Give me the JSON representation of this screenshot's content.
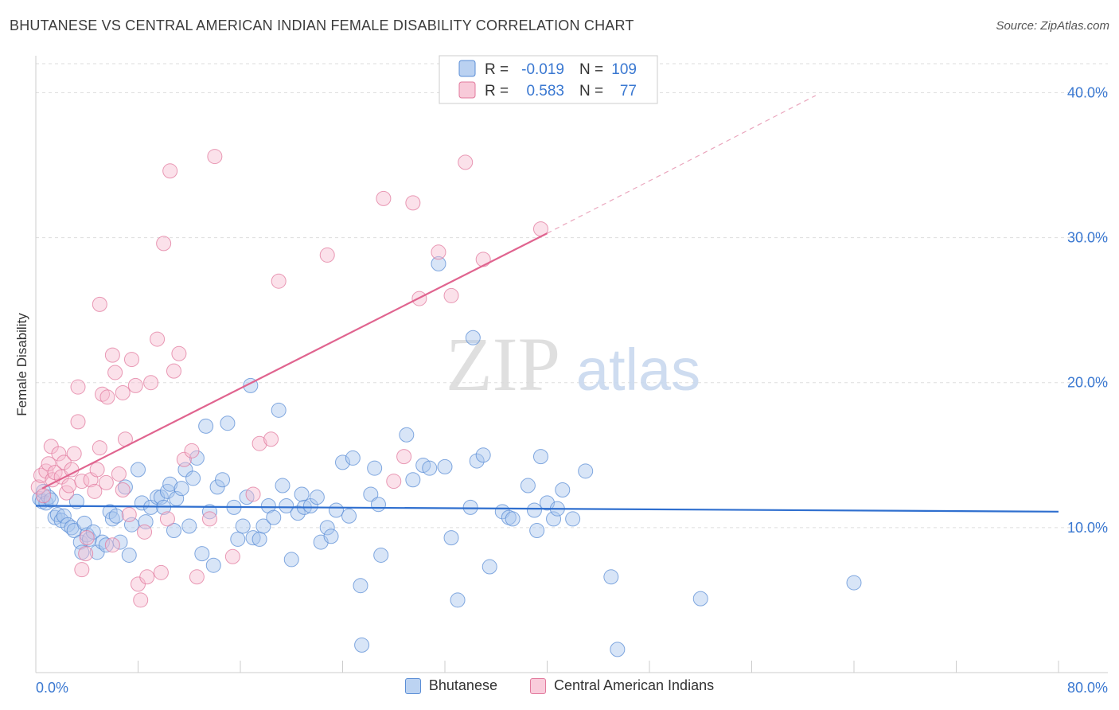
{
  "title": "BHUTANESE VS CENTRAL AMERICAN INDIAN FEMALE DISABILITY CORRELATION CHART",
  "source": "Source: ZipAtlas.com",
  "watermark": {
    "zip": "ZIP",
    "atlas": "atlas"
  },
  "chart_data": {
    "type": "scatter",
    "ylabel": "Female Disability",
    "xlabel": "",
    "xlim": [
      0,
      80
    ],
    "ylim": [
      0,
      42
    ],
    "x_tick_labels": [
      "0.0%",
      "80.0%"
    ],
    "y_ticks": [
      10,
      20,
      30,
      40
    ],
    "y_tick_labels": [
      "10.0%",
      "20.0%",
      "30.0%",
      "40.0%"
    ],
    "grid": true,
    "legend_position": "top-center",
    "series": [
      {
        "name": "Bhutanese",
        "color": "#5b8ed6",
        "fill": "#a9c6ee",
        "stats": {
          "r_label": "R =",
          "r_value": "-0.019",
          "n_label": "N =",
          "n_value": "109"
        },
        "trend": {
          "x": [
            0,
            80
          ],
          "y": [
            11.5,
            11.1
          ]
        },
        "points": [
          [
            0.3,
            12.0
          ],
          [
            0.5,
            11.8
          ],
          [
            0.6,
            12.5
          ],
          [
            0.8,
            11.7
          ],
          [
            1.0,
            12.1
          ],
          [
            1.2,
            11.9
          ],
          [
            1.5,
            10.7
          ],
          [
            1.7,
            10.9
          ],
          [
            2.0,
            10.5
          ],
          [
            2.2,
            10.8
          ],
          [
            2.5,
            10.2
          ],
          [
            2.8,
            10.0
          ],
          [
            3.0,
            9.8
          ],
          [
            3.2,
            11.8
          ],
          [
            3.5,
            9.0
          ],
          [
            3.6,
            8.3
          ],
          [
            3.8,
            10.3
          ],
          [
            4.0,
            9.5
          ],
          [
            4.2,
            9.2
          ],
          [
            4.5,
            9.7
          ],
          [
            4.8,
            8.3
          ],
          [
            5.2,
            9.0
          ],
          [
            5.5,
            8.8
          ],
          [
            5.8,
            11.1
          ],
          [
            6.0,
            10.6
          ],
          [
            6.3,
            10.8
          ],
          [
            6.6,
            9.0
          ],
          [
            7.0,
            12.8
          ],
          [
            7.3,
            8.1
          ],
          [
            7.5,
            10.2
          ],
          [
            8.0,
            14.0
          ],
          [
            8.3,
            11.7
          ],
          [
            8.6,
            10.4
          ],
          [
            9.0,
            11.4
          ],
          [
            9.5,
            12.1
          ],
          [
            9.8,
            12.1
          ],
          [
            10.0,
            11.4
          ],
          [
            10.3,
            12.5
          ],
          [
            10.5,
            13.0
          ],
          [
            10.8,
            9.8
          ],
          [
            11.0,
            12.0
          ],
          [
            11.4,
            12.7
          ],
          [
            11.7,
            14.0
          ],
          [
            12.0,
            10.1
          ],
          [
            12.3,
            13.4
          ],
          [
            12.6,
            14.8
          ],
          [
            13.0,
            8.2
          ],
          [
            13.3,
            17.0
          ],
          [
            13.6,
            11.1
          ],
          [
            13.9,
            7.4
          ],
          [
            14.2,
            12.8
          ],
          [
            14.6,
            13.3
          ],
          [
            15.0,
            17.2
          ],
          [
            15.5,
            11.4
          ],
          [
            15.8,
            9.2
          ],
          [
            16.2,
            10.1
          ],
          [
            16.5,
            12.1
          ],
          [
            16.8,
            19.8
          ],
          [
            17.0,
            9.3
          ],
          [
            17.5,
            9.2
          ],
          [
            17.8,
            10.1
          ],
          [
            18.2,
            11.5
          ],
          [
            18.6,
            10.7
          ],
          [
            19.0,
            18.1
          ],
          [
            19.3,
            12.9
          ],
          [
            19.6,
            11.5
          ],
          [
            20.0,
            7.8
          ],
          [
            20.5,
            11.0
          ],
          [
            20.8,
            12.3
          ],
          [
            21.0,
            11.4
          ],
          [
            21.5,
            11.5
          ],
          [
            22.0,
            12.1
          ],
          [
            22.3,
            9.0
          ],
          [
            22.8,
            10.0
          ],
          [
            23.1,
            9.4
          ],
          [
            23.5,
            11.2
          ],
          [
            24.0,
            14.5
          ],
          [
            24.5,
            10.8
          ],
          [
            24.8,
            14.8
          ],
          [
            25.4,
            6.0
          ],
          [
            25.5,
            1.9
          ],
          [
            26.2,
            12.3
          ],
          [
            26.5,
            14.1
          ],
          [
            26.8,
            11.6
          ],
          [
            27.0,
            8.1
          ],
          [
            29.0,
            16.4
          ],
          [
            29.5,
            13.3
          ],
          [
            30.3,
            14.3
          ],
          [
            30.8,
            14.1
          ],
          [
            31.5,
            28.2
          ],
          [
            32.0,
            14.2
          ],
          [
            32.5,
            9.3
          ],
          [
            33.0,
            5.0
          ],
          [
            34.0,
            11.4
          ],
          [
            34.2,
            23.1
          ],
          [
            34.5,
            14.6
          ],
          [
            35.0,
            15.0
          ],
          [
            35.5,
            7.3
          ],
          [
            36.5,
            11.1
          ],
          [
            37.0,
            10.7
          ],
          [
            37.3,
            10.6
          ],
          [
            38.5,
            12.9
          ],
          [
            39.0,
            11.2
          ],
          [
            39.2,
            9.8
          ],
          [
            39.5,
            14.9
          ],
          [
            40.0,
            11.7
          ],
          [
            40.5,
            10.6
          ],
          [
            40.8,
            11.3
          ],
          [
            41.2,
            12.6
          ],
          [
            42.0,
            10.6
          ],
          [
            43.0,
            13.9
          ],
          [
            45.0,
            6.6
          ],
          [
            45.5,
            1.6
          ],
          [
            52.0,
            5.1
          ],
          [
            64.0,
            6.2
          ]
        ]
      },
      {
        "name": "Central American Indians",
        "color": "#e27a9d",
        "fill": "#f6bdd0",
        "stats": {
          "r_label": "R =",
          "r_value": "0.583",
          "n_label": "N =",
          "n_value": "77"
        },
        "trend": {
          "x": [
            0.5,
            40.0
          ],
          "y": [
            12.7,
            30.3
          ]
        },
        "trend_extension": {
          "x": [
            40.0,
            61.0
          ],
          "y": [
            30.3,
            39.8
          ]
        },
        "points": [
          [
            0.2,
            12.8
          ],
          [
            0.4,
            13.6
          ],
          [
            0.6,
            12.2
          ],
          [
            0.8,
            13.9
          ],
          [
            1.0,
            14.4
          ],
          [
            1.2,
            15.6
          ],
          [
            1.3,
            13.3
          ],
          [
            1.5,
            13.8
          ],
          [
            1.8,
            15.1
          ],
          [
            2.0,
            13.5
          ],
          [
            2.2,
            14.5
          ],
          [
            2.4,
            12.4
          ],
          [
            2.6,
            12.9
          ],
          [
            2.8,
            14.0
          ],
          [
            3.0,
            15.1
          ],
          [
            3.3,
            19.7
          ],
          [
            3.3,
            17.3
          ],
          [
            3.6,
            13.2
          ],
          [
            3.6,
            7.1
          ],
          [
            3.9,
            8.2
          ],
          [
            4.0,
            9.3
          ],
          [
            4.3,
            13.3
          ],
          [
            4.6,
            12.5
          ],
          [
            4.8,
            14.0
          ],
          [
            5.0,
            15.5
          ],
          [
            5.0,
            25.4
          ],
          [
            5.2,
            19.2
          ],
          [
            5.5,
            13.1
          ],
          [
            5.6,
            19.0
          ],
          [
            6.0,
            8.8
          ],
          [
            6.0,
            21.9
          ],
          [
            6.2,
            20.7
          ],
          [
            6.5,
            13.7
          ],
          [
            6.8,
            19.3
          ],
          [
            6.8,
            12.6
          ],
          [
            7.0,
            16.1
          ],
          [
            7.3,
            10.9
          ],
          [
            7.5,
            21.6
          ],
          [
            7.8,
            19.8
          ],
          [
            8.0,
            6.1
          ],
          [
            8.2,
            5.0
          ],
          [
            8.5,
            9.7
          ],
          [
            8.7,
            6.6
          ],
          [
            9.0,
            20.0
          ],
          [
            9.5,
            23.0
          ],
          [
            9.8,
            6.9
          ],
          [
            10.0,
            29.6
          ],
          [
            10.3,
            10.6
          ],
          [
            10.5,
            34.6
          ],
          [
            10.8,
            20.8
          ],
          [
            11.2,
            22.0
          ],
          [
            11.6,
            14.7
          ],
          [
            12.2,
            15.3
          ],
          [
            12.6,
            6.6
          ],
          [
            13.6,
            10.6
          ],
          [
            14.0,
            35.6
          ],
          [
            15.4,
            8.0
          ],
          [
            17.0,
            12.3
          ],
          [
            17.5,
            15.8
          ],
          [
            18.4,
            16.1
          ],
          [
            19.0,
            27.0
          ],
          [
            22.8,
            28.8
          ],
          [
            27.2,
            32.7
          ],
          [
            28.0,
            13.2
          ],
          [
            28.8,
            14.9
          ],
          [
            29.5,
            32.4
          ],
          [
            30.0,
            25.8
          ],
          [
            31.5,
            29.0
          ],
          [
            32.5,
            26.0
          ],
          [
            33.6,
            35.2
          ],
          [
            35.0,
            28.5
          ],
          [
            39.5,
            30.6
          ]
        ]
      }
    ]
  }
}
